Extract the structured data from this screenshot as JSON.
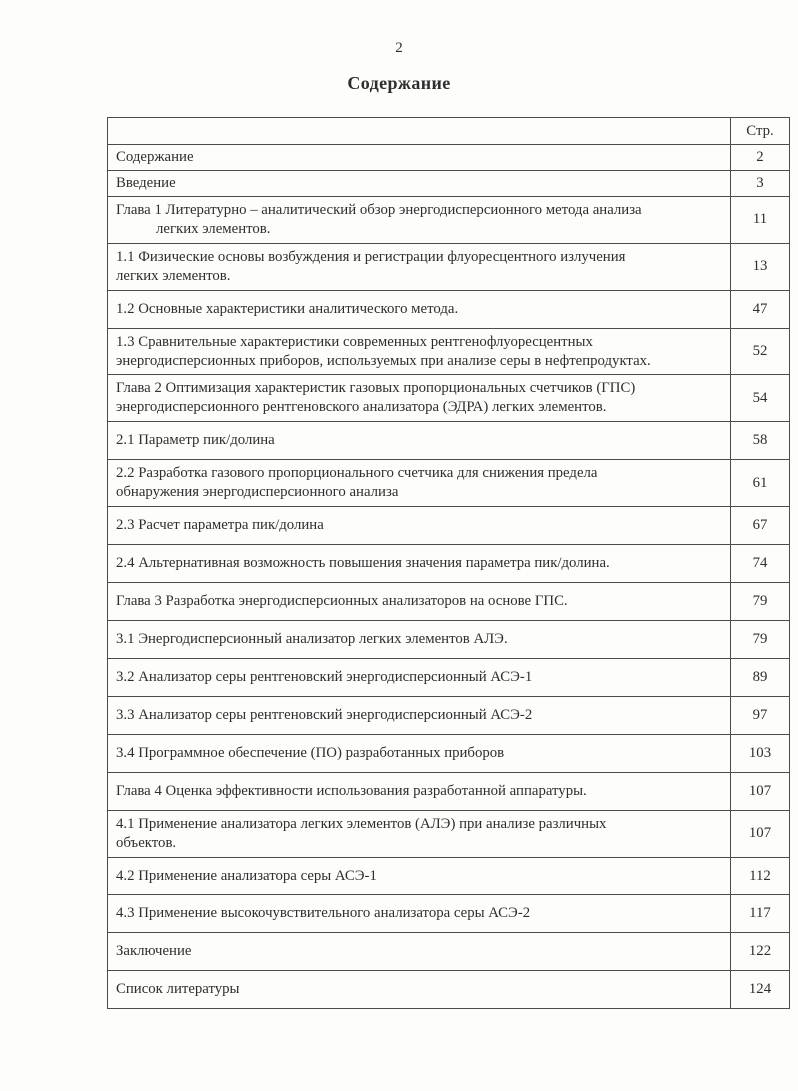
{
  "page": {
    "number": "2",
    "title": "Содержание"
  },
  "toc_table": {
    "page_column_header": "Стр.",
    "rows": [
      {
        "title": "Содержание",
        "page": "2"
      },
      {
        "title": "Введение",
        "page": "3"
      },
      {
        "title": "Глава 1 Литературно – аналитический обзор энергодисперсионного метода анализа\nлегких элементов.",
        "page": "11",
        "hang": true
      },
      {
        "title": "1.1 Физические основы возбуждения и регистрации флуоресцентного излучения\nлегких элементов.",
        "page": "13"
      },
      {
        "title": "1.2 Основные характеристики аналитического метода.",
        "page": "47"
      },
      {
        "title": "1.3 Сравнительные характеристики современных рентгенофлуоресцентных\nэнергодисперсионных приборов, используемых при анализе серы в нефтепродуктах.",
        "page": "52"
      },
      {
        "title": "Глава 2 Оптимизация характеристик газовых пропорциональных счетчиков (ГПС)\nэнергодисперсионного рентгеновского анализатора (ЭДРА) легких элементов.",
        "page": "54"
      },
      {
        "title": "2.1 Параметр пик/долина",
        "page": "58"
      },
      {
        "title": "2.2 Разработка газового пропорционального счетчика для снижения предела\nобнаружения энергодисперсионного анализа",
        "page": "61"
      },
      {
        "title": "2.3 Расчет параметра пик/долина",
        "page": "67"
      },
      {
        "title": "2.4 Альтернативная возможность повышения значения параметра пик/долина.",
        "page": "74"
      },
      {
        "title": "Глава 3 Разработка энергодисперсионных анализаторов на основе ГПС.",
        "page": "79"
      },
      {
        "title": "3.1 Энергодисперсионный анализатор легких элементов АЛЭ.",
        "page": "79"
      },
      {
        "title": "3.2 Анализатор серы рентгеновский энергодисперсионный АСЭ-1",
        "page": "89"
      },
      {
        "title": "3.3 Анализатор серы рентгеновский энергодисперсионный АСЭ-2",
        "page": "97"
      },
      {
        "title": "3.4 Программное обеспечение (ПО) разработанных приборов",
        "page": "103"
      },
      {
        "title": "Глава 4 Оценка эффективности использования разработанной аппаратуры.",
        "page": "107"
      },
      {
        "title": "4.1 Применение анализатора легких элементов (АЛЭ) при анализе различных\nобъектов.",
        "page": "107"
      },
      {
        "title": "4.2 Применение анализатора серы АСЭ-1",
        "page": "112"
      },
      {
        "title": "4.3 Применение высокочувствительного анализатора серы АСЭ-2",
        "page": "117"
      },
      {
        "title": "Заключение",
        "page": "122"
      },
      {
        "title": "Список литературы",
        "page": "124"
      }
    ]
  }
}
